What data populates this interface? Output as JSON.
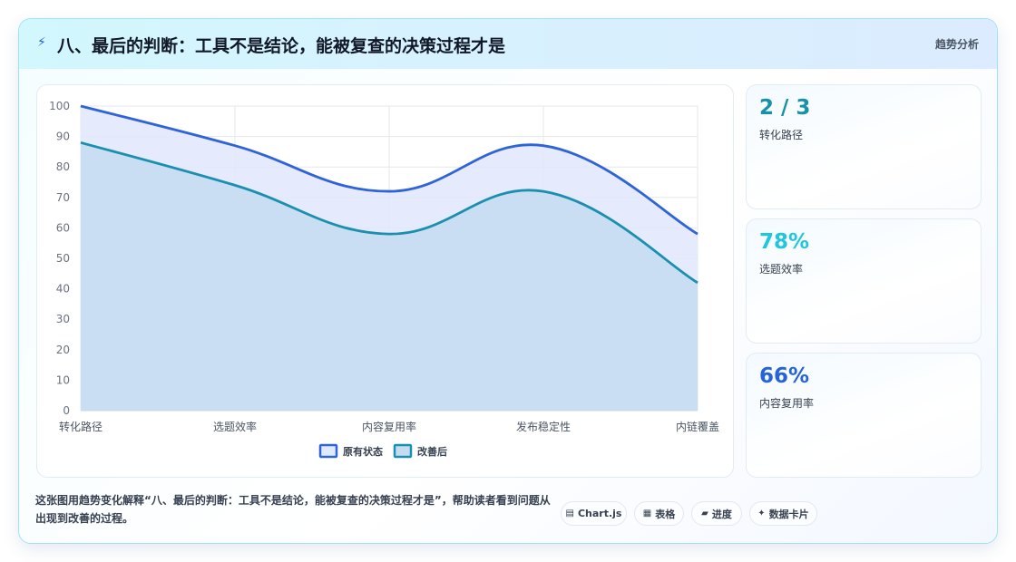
{
  "header": {
    "icon": "lightning-icon",
    "title": "八、最后的判断：工具不是结论，能被复查的决策过程才是",
    "tag": "趋势分析"
  },
  "chart_data": {
    "type": "area",
    "categories": [
      "转化路径",
      "选题效率",
      "内容复用率",
      "发布稳定性",
      "内链覆盖"
    ],
    "series": [
      {
        "name": "原有状态",
        "values": [
          100,
          87,
          72,
          87,
          58
        ],
        "color": "#2f63d8",
        "fill": "#e0e8fb"
      },
      {
        "name": "改善后",
        "values": [
          88,
          74,
          58,
          72,
          42
        ],
        "color": "#1b8fb0",
        "fill": "#c4dcf1"
      }
    ],
    "ylim": [
      0,
      100
    ],
    "yticks": [
      0,
      10,
      20,
      30,
      40,
      50,
      60,
      70,
      80,
      90,
      100
    ],
    "grid": true,
    "legend": "bottom"
  },
  "kpis": [
    {
      "value": "2 / 3",
      "label": "转化路径",
      "color": "#1591a8"
    },
    {
      "value": "78%",
      "label": "选题效率",
      "color": "#22c6dc"
    },
    {
      "value": "66%",
      "label": "内容复用率",
      "color": "#2563d6"
    }
  ],
  "caption": "这张图用趋势变化解释“八、最后的判断：工具不是结论，能被复查的决策过程才是”，帮助读者看到问题从出现到改善的过程。",
  "chips": [
    {
      "icon": "chart-icon",
      "glyph": "▤",
      "label": "Chart.js"
    },
    {
      "icon": "table-icon",
      "glyph": "▦",
      "label": "表格"
    },
    {
      "icon": "progress-icon",
      "glyph": "▰",
      "label": "进度"
    },
    {
      "icon": "sparkle-icon",
      "glyph": "✦",
      "label": "数据卡片"
    }
  ]
}
